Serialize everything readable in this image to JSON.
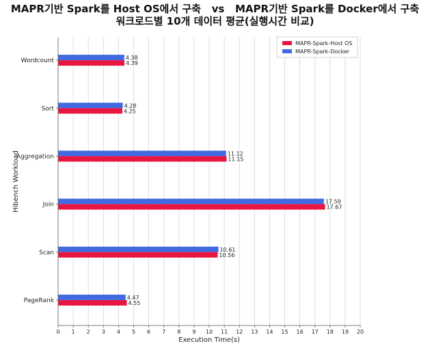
{
  "chart_data": {
    "type": "bar",
    "orientation": "horizontal",
    "title": "MAPR기반 Spark를 Host OS에서 구축   vs   MAPR기반 Spark를 Docker에서 구축",
    "subtitle": "워크로드별 10개 데이터 평균(실행시간 비교)",
    "xlabel": "Execution Time(s)",
    "ylabel": "Hibench Workload",
    "xlim": [
      0,
      20
    ],
    "xticks": [
      0,
      1,
      2,
      3,
      4,
      5,
      6,
      7,
      8,
      9,
      10,
      11,
      12,
      13,
      14,
      15,
      16,
      17,
      18,
      19,
      20
    ],
    "grid": "vertical",
    "legend_position": "top-right",
    "categories": [
      "Wordcount",
      "Sort",
      "Aggregation",
      "Join",
      "Scan",
      "PageRank"
    ],
    "series": [
      {
        "name": "MAPR-Spark-Host OS",
        "color": "#e8163f",
        "values": [
          4.39,
          4.25,
          11.15,
          17.67,
          10.56,
          4.55
        ],
        "labels": [
          "4.39",
          "4.25",
          "11.15",
          "17.67",
          "10.56",
          "4.55"
        ]
      },
      {
        "name": "MAPR-Spark-Docker",
        "color": "#4169e1",
        "values": [
          4.38,
          4.28,
          11.12,
          17.59,
          10.61,
          4.47
        ],
        "labels": [
          "4.38",
          "4.28",
          "11.12",
          "17.59",
          "10.61",
          "4.47"
        ]
      }
    ]
  }
}
